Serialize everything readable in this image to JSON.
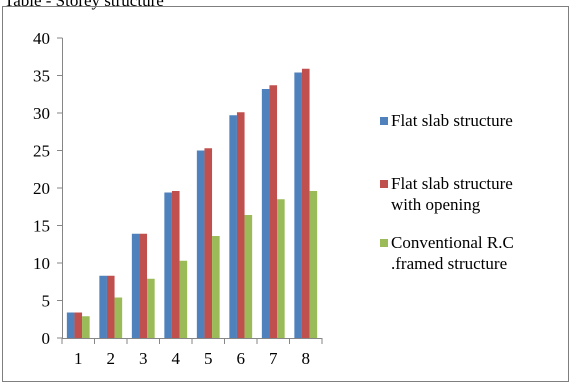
{
  "header": {
    "cropped_caption": "Table - Storey structure"
  },
  "chart_data": {
    "type": "bar",
    "categories": [
      "1",
      "2",
      "3",
      "4",
      "5",
      "6",
      "7",
      "8"
    ],
    "ylim": [
      0,
      40
    ],
    "yticks": [
      "0",
      "5",
      "10",
      "15",
      "20",
      "25",
      "30",
      "35",
      "40"
    ],
    "legend_position": "right",
    "grid": false,
    "series": [
      {
        "name": "Flat slab structure",
        "color": "#4f81bd",
        "values": [
          3.4,
          8.3,
          13.9,
          19.4,
          25.0,
          29.7,
          33.2,
          35.4
        ]
      },
      {
        "name": "Flat slab structure with opening",
        "color": "#c0504d",
        "values": [
          3.4,
          8.3,
          13.9,
          19.6,
          25.3,
          30.1,
          33.7,
          35.9
        ]
      },
      {
        "name": "Conventional R.C .framed structure",
        "color": "#9bbb59",
        "values": [
          2.9,
          5.4,
          7.9,
          10.3,
          13.6,
          16.4,
          18.5,
          19.6
        ]
      }
    ],
    "legend_lines": [
      [
        "Flat slab structure"
      ],
      [
        "Flat slab structure",
        "with opening"
      ],
      [
        "Conventional R.C",
        ".framed structure"
      ]
    ]
  }
}
